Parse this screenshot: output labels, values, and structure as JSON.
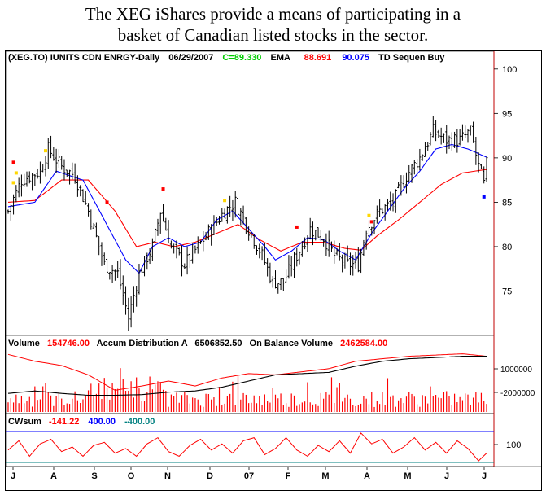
{
  "caption": {
    "line1": "The XEG iShares provide a means of participating in a",
    "line2": "basket of Canadian listed stocks in the sector."
  },
  "chart_data": [
    {
      "type": "ohlc",
      "header": {
        "symbol": "(XEG.TO) IUNITS CDN ENRGY-Daily",
        "date": "06/29/2007",
        "close_label": "C=89.330",
        "ema_label": "EMA",
        "ema_slow_value": "88.691",
        "ema_fast_value": "90.075",
        "signal_label": "TD Sequen Buy"
      },
      "yticks": [
        100,
        95,
        90,
        85,
        80,
        75
      ],
      "ylim": [
        70,
        102
      ],
      "xlabels": [
        "J",
        "A",
        "S",
        "O",
        "N",
        "D",
        "07",
        "F",
        "M",
        "A",
        "M",
        "J",
        "J"
      ],
      "price_anchors": [
        [
          0,
          84
        ],
        [
          5,
          87.5
        ],
        [
          12,
          88.5
        ],
        [
          15,
          91
        ],
        [
          20,
          89
        ],
        [
          25,
          88
        ],
        [
          30,
          84
        ],
        [
          36,
          78
        ],
        [
          41,
          77
        ],
        [
          45,
          72
        ],
        [
          49,
          77
        ],
        [
          54,
          80
        ],
        [
          57,
          84
        ],
        [
          61,
          80
        ],
        [
          66,
          78
        ],
        [
          71,
          80
        ],
        [
          76,
          82
        ],
        [
          81,
          84
        ],
        [
          85,
          85
        ],
        [
          90,
          82
        ],
        [
          95,
          79
        ],
        [
          99,
          76
        ],
        [
          103,
          76
        ],
        [
          108,
          79
        ],
        [
          113,
          82
        ],
        [
          118,
          81
        ],
        [
          122,
          79
        ],
        [
          127,
          78
        ],
        [
          131,
          78
        ],
        [
          134,
          82
        ],
        [
          139,
          84
        ],
        [
          144,
          85
        ],
        [
          149,
          88
        ],
        [
          154,
          90
        ],
        [
          159,
          93
        ],
        [
          164,
          92
        ],
        [
          169,
          92
        ],
        [
          173,
          93
        ],
        [
          176,
          89
        ],
        [
          178,
          87
        ],
        [
          179,
          89.3
        ]
      ],
      "ema_fast_anchors": [
        [
          0,
          84.5
        ],
        [
          10,
          85
        ],
        [
          18,
          88.5
        ],
        [
          28,
          87.5
        ],
        [
          36,
          83
        ],
        [
          44,
          78.5
        ],
        [
          49,
          77
        ],
        [
          54,
          80
        ],
        [
          60,
          81
        ],
        [
          66,
          80
        ],
        [
          72,
          80.5
        ],
        [
          78,
          83
        ],
        [
          84,
          84
        ],
        [
          90,
          82
        ],
        [
          96,
          80
        ],
        [
          100,
          78.5
        ],
        [
          106,
          79.5
        ],
        [
          112,
          81
        ],
        [
          118,
          80.8
        ],
        [
          124,
          79.5
        ],
        [
          130,
          78.5
        ],
        [
          136,
          81.5
        ],
        [
          142,
          84
        ],
        [
          148,
          86.5
        ],
        [
          154,
          88.5
        ],
        [
          160,
          91
        ],
        [
          166,
          91.5
        ],
        [
          172,
          91
        ],
        [
          179,
          90.075
        ]
      ],
      "ema_slow_anchors": [
        [
          0,
          85
        ],
        [
          10,
          85.2
        ],
        [
          20,
          87.5
        ],
        [
          30,
          87.5
        ],
        [
          40,
          84
        ],
        [
          48,
          80
        ],
        [
          55,
          80.5
        ],
        [
          62,
          80
        ],
        [
          70,
          80.5
        ],
        [
          78,
          81.5
        ],
        [
          86,
          82.5
        ],
        [
          94,
          80.8
        ],
        [
          102,
          79.5
        ],
        [
          110,
          80.5
        ],
        [
          118,
          80.5
        ],
        [
          126,
          79.8
        ],
        [
          132,
          79.6
        ],
        [
          138,
          81.2
        ],
        [
          146,
          83
        ],
        [
          154,
          85
        ],
        [
          162,
          87
        ],
        [
          170,
          88.3
        ],
        [
          179,
          88.691
        ]
      ],
      "markers": [
        {
          "i": 2,
          "y": 89.5,
          "color": "#ff0000"
        },
        {
          "i": 3,
          "y": 88.3,
          "color": "#ffd700"
        },
        {
          "i": 2,
          "y": 87.2,
          "color": "#ffd700"
        },
        {
          "i": 14,
          "y": 90.8,
          "color": "#ffd700"
        },
        {
          "i": 37,
          "y": 85.0,
          "color": "#ff0000"
        },
        {
          "i": 58,
          "y": 86.5,
          "color": "#ff0000"
        },
        {
          "i": 81,
          "y": 85.2,
          "color": "#ffd700"
        },
        {
          "i": 108,
          "y": 82.2,
          "color": "#ff0000"
        },
        {
          "i": 135,
          "y": 83.5,
          "color": "#ffd700"
        },
        {
          "i": 136,
          "y": 82.8,
          "color": "#ff0000"
        },
        {
          "i": 178,
          "y": 85.6,
          "color": "#0000ff"
        }
      ]
    },
    {
      "type": "volume",
      "header": {
        "volume_label": "Volume",
        "volume_value": "154746.00",
        "accum_label": "Accum Distribution A",
        "accum_value": "6506852.50",
        "obv_label": "On Balance Volume",
        "obv_value": "2462584.00"
      },
      "yticks": [
        "1000000",
        "-2000000"
      ],
      "ad_anchors": [
        [
          0,
          0.93
        ],
        [
          10,
          0.82
        ],
        [
          20,
          0.75
        ],
        [
          30,
          0.6
        ],
        [
          40,
          0.35
        ],
        [
          50,
          0.42
        ],
        [
          60,
          0.5
        ],
        [
          70,
          0.42
        ],
        [
          80,
          0.55
        ],
        [
          90,
          0.62
        ],
        [
          100,
          0.6
        ],
        [
          110,
          0.65
        ],
        [
          120,
          0.7
        ],
        [
          130,
          0.82
        ],
        [
          140,
          0.86
        ],
        [
          150,
          0.9
        ],
        [
          160,
          0.92
        ],
        [
          170,
          0.94
        ],
        [
          179,
          0.9
        ]
      ],
      "obv_anchors": [
        [
          0,
          0.3
        ],
        [
          10,
          0.34
        ],
        [
          20,
          0.3
        ],
        [
          30,
          0.27
        ],
        [
          40,
          0.27
        ],
        [
          50,
          0.28
        ],
        [
          60,
          0.32
        ],
        [
          70,
          0.34
        ],
        [
          80,
          0.4
        ],
        [
          90,
          0.5
        ],
        [
          100,
          0.6
        ],
        [
          110,
          0.62
        ],
        [
          120,
          0.64
        ],
        [
          130,
          0.74
        ],
        [
          140,
          0.82
        ],
        [
          150,
          0.86
        ],
        [
          160,
          0.88
        ],
        [
          170,
          0.9
        ],
        [
          179,
          0.9
        ]
      ]
    },
    {
      "type": "oscillator",
      "header": {
        "label": "CWsum",
        "value": "-141.22",
        "upper_value": "400.00",
        "lower_value": "-400.00"
      },
      "yticks": [
        "100"
      ],
      "anchors": [
        [
          0,
          0.4
        ],
        [
          4,
          0.7
        ],
        [
          8,
          0.2
        ],
        [
          12,
          0.6
        ],
        [
          16,
          0.75
        ],
        [
          20,
          0.35
        ],
        [
          24,
          0.5
        ],
        [
          28,
          0.2
        ],
        [
          32,
          0.55
        ],
        [
          36,
          0.65
        ],
        [
          40,
          0.3
        ],
        [
          44,
          0.45
        ],
        [
          48,
          0.2
        ],
        [
          52,
          0.6
        ],
        [
          56,
          0.8
        ],
        [
          60,
          0.35
        ],
        [
          64,
          0.2
        ],
        [
          68,
          0.55
        ],
        [
          72,
          0.75
        ],
        [
          76,
          0.4
        ],
        [
          80,
          0.6
        ],
        [
          84,
          0.3
        ],
        [
          88,
          0.7
        ],
        [
          92,
          0.8
        ],
        [
          96,
          0.25
        ],
        [
          100,
          0.45
        ],
        [
          104,
          0.8
        ],
        [
          108,
          0.4
        ],
        [
          112,
          0.2
        ],
        [
          116,
          0.55
        ],
        [
          120,
          0.35
        ],
        [
          124,
          0.7
        ],
        [
          128,
          0.3
        ],
        [
          132,
          0.95
        ],
        [
          136,
          0.6
        ],
        [
          140,
          0.75
        ],
        [
          144,
          0.3
        ],
        [
          148,
          0.5
        ],
        [
          152,
          0.8
        ],
        [
          156,
          0.4
        ],
        [
          160,
          0.65
        ],
        [
          164,
          0.3
        ],
        [
          168,
          0.7
        ],
        [
          172,
          0.45
        ],
        [
          176,
          0.05
        ],
        [
          179,
          0.3
        ]
      ]
    }
  ]
}
